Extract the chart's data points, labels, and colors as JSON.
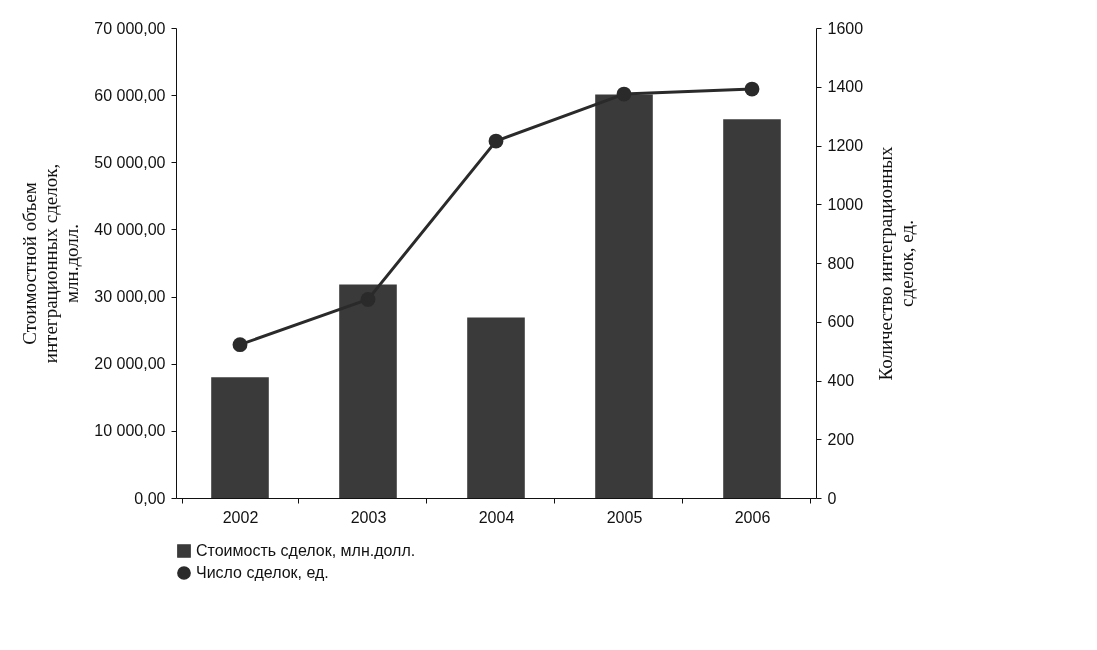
{
  "chart_data": {
    "type": "bar",
    "categories": [
      "2002",
      "2003",
      "2004",
      "2005",
      "2006"
    ],
    "ylabel": "Стоимостной объем\nинтеграционных сделок,\nмлн.долл.",
    "y2label": "Количество интеграционных\nсделок, ед.",
    "series": [
      {
        "name": "Стоимость сделок, млн.долл.",
        "color": "#3a3a3a",
        "values": [
          18000,
          31800,
          26900,
          60100,
          56400
        ]
      },
      {
        "name": "Число сделок, ед.",
        "type": "line",
        "axis": "y2",
        "color": "#2a2a2a",
        "marker": "circle",
        "values": [
          522,
          676,
          1215,
          1375,
          1392
        ]
      }
    ],
    "ylim": [
      0,
      70000
    ],
    "yticks": [
      {
        "value": 0,
        "label": "0,00"
      },
      {
        "value": 10000,
        "label": "10 000,00"
      },
      {
        "value": 20000,
        "label": "20 000,00"
      },
      {
        "value": 30000,
        "label": "30 000,00"
      },
      {
        "value": 40000,
        "label": "40 000,00"
      },
      {
        "value": 50000,
        "label": "50 000,00"
      },
      {
        "value": 60000,
        "label": "60 000,00"
      },
      {
        "value": 70000,
        "label": "70 000,00"
      }
    ],
    "y2lim": [
      0,
      1600
    ],
    "y2ticks": [
      0,
      200,
      400,
      600,
      800,
      1000,
      1200,
      1400,
      1600
    ],
    "legend": "bottom",
    "grid": false
  }
}
